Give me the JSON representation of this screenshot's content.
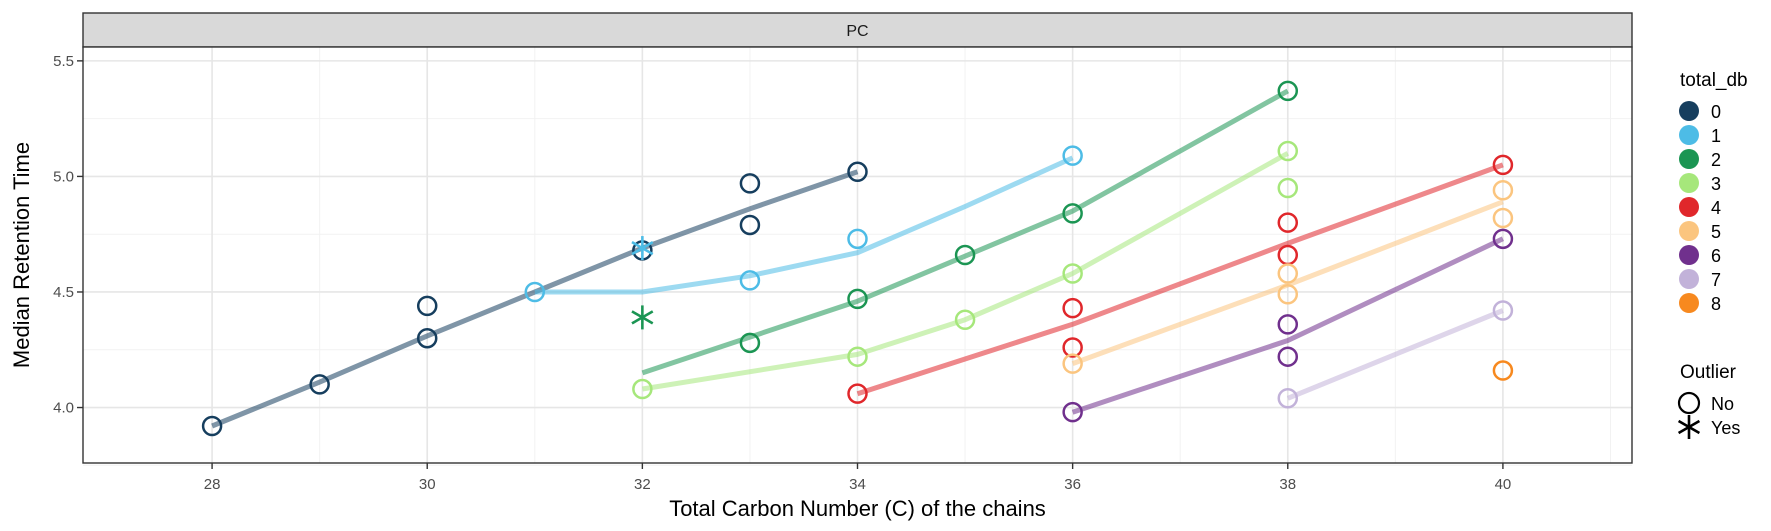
{
  "chart_data": {
    "type": "scatter",
    "facet": "PC",
    "xlabel": "Total Carbon Number (C) of the chains",
    "ylabel": "Median Retention Time",
    "xlim": [
      26.8,
      41.2
    ],
    "ylim": [
      3.76,
      5.56
    ],
    "x_ticks": [
      28,
      30,
      32,
      34,
      36,
      38,
      40
    ],
    "y_ticks": [
      4.0,
      4.5,
      5.0,
      5.5
    ],
    "y_tick_labels": [
      "4.0",
      "4.5",
      "5.0",
      "5.5"
    ],
    "grid": true,
    "legend_position": "right",
    "color_legend": {
      "title": "total_db",
      "entries": [
        {
          "label": "0",
          "color": "#163E5E"
        },
        {
          "label": "1",
          "color": "#4DBCE6"
        },
        {
          "label": "2",
          "color": "#1B9553"
        },
        {
          "label": "3",
          "color": "#A6E77B"
        },
        {
          "label": "4",
          "color": "#E0272B"
        },
        {
          "label": "5",
          "color": "#FBC57F"
        },
        {
          "label": "6",
          "color": "#70308D"
        },
        {
          "label": "7",
          "color": "#C2B2D9"
        },
        {
          "label": "8",
          "color": "#F7891F"
        }
      ]
    },
    "shape_legend": {
      "title": "Outlier",
      "entries": [
        {
          "label": "No",
          "shape": "open-circle"
        },
        {
          "label": "Yes",
          "shape": "asterisk"
        }
      ]
    },
    "series": [
      {
        "name": "0",
        "points": [
          {
            "x": 28,
            "y": 3.92,
            "outlier": false
          },
          {
            "x": 29,
            "y": 4.1,
            "outlier": false
          },
          {
            "x": 30,
            "y": 4.3,
            "outlier": false
          },
          {
            "x": 30,
            "y": 4.44,
            "outlier": false
          },
          {
            "x": 32,
            "y": 4.68,
            "outlier": false
          },
          {
            "x": 33,
            "y": 4.79,
            "outlier": false
          },
          {
            "x": 33,
            "y": 4.97,
            "outlier": false
          },
          {
            "x": 34,
            "y": 5.02,
            "outlier": false
          }
        ],
        "fit": [
          [
            28,
            3.92
          ],
          [
            29,
            4.11
          ],
          [
            30,
            4.31
          ],
          [
            31,
            4.5
          ],
          [
            32,
            4.69
          ],
          [
            33,
            4.86
          ],
          [
            34,
            5.02
          ]
        ]
      },
      {
        "name": "1",
        "points": [
          {
            "x": 31,
            "y": 4.5,
            "outlier": false
          },
          {
            "x": 32,
            "y": 4.69,
            "outlier": true
          },
          {
            "x": 33,
            "y": 4.55,
            "outlier": false
          },
          {
            "x": 34,
            "y": 4.73,
            "outlier": false
          },
          {
            "x": 36,
            "y": 5.09,
            "outlier": false
          }
        ],
        "fit": [
          [
            31,
            4.5
          ],
          [
            32,
            4.5
          ],
          [
            33,
            4.57
          ],
          [
            34,
            4.67
          ],
          [
            35,
            4.87
          ],
          [
            36,
            5.08
          ]
        ]
      },
      {
        "name": "2",
        "points": [
          {
            "x": 32,
            "y": 4.39,
            "outlier": true
          },
          {
            "x": 33,
            "y": 4.28,
            "outlier": false
          },
          {
            "x": 34,
            "y": 4.47,
            "outlier": false
          },
          {
            "x": 35,
            "y": 4.66,
            "outlier": false
          },
          {
            "x": 36,
            "y": 4.84,
            "outlier": false
          },
          {
            "x": 38,
            "y": 5.37,
            "outlier": false
          }
        ],
        "fit": [
          [
            32,
            4.15
          ],
          [
            34,
            4.46
          ],
          [
            36,
            4.85
          ],
          [
            38,
            5.37
          ]
        ]
      },
      {
        "name": "3",
        "points": [
          {
            "x": 32,
            "y": 4.08,
            "outlier": false
          },
          {
            "x": 34,
            "y": 4.22,
            "outlier": false
          },
          {
            "x": 35,
            "y": 4.38,
            "outlier": false
          },
          {
            "x": 36,
            "y": 4.58,
            "outlier": false
          },
          {
            "x": 38,
            "y": 4.95,
            "outlier": false
          },
          {
            "x": 38,
            "y": 5.11,
            "outlier": false
          }
        ],
        "fit": [
          [
            32,
            4.08
          ],
          [
            34,
            4.23
          ],
          [
            35,
            4.38
          ],
          [
            36,
            4.58
          ],
          [
            38,
            5.1
          ]
        ]
      },
      {
        "name": "4",
        "points": [
          {
            "x": 34,
            "y": 4.06,
            "outlier": false
          },
          {
            "x": 36,
            "y": 4.26,
            "outlier": false
          },
          {
            "x": 36,
            "y": 4.43,
            "outlier": false
          },
          {
            "x": 38,
            "y": 4.66,
            "outlier": false
          },
          {
            "x": 38,
            "y": 4.8,
            "outlier": false
          },
          {
            "x": 40,
            "y": 5.05,
            "outlier": false
          }
        ],
        "fit": [
          [
            34,
            4.06
          ],
          [
            36,
            4.36
          ],
          [
            38,
            4.71
          ],
          [
            40,
            5.05
          ]
        ]
      },
      {
        "name": "5",
        "points": [
          {
            "x": 36,
            "y": 4.19,
            "outlier": false
          },
          {
            "x": 38,
            "y": 4.49,
            "outlier": false
          },
          {
            "x": 38,
            "y": 4.58,
            "outlier": false
          },
          {
            "x": 40,
            "y": 4.82,
            "outlier": false
          },
          {
            "x": 40,
            "y": 4.94,
            "outlier": false
          }
        ],
        "fit": [
          [
            36,
            4.19
          ],
          [
            38,
            4.53
          ],
          [
            40,
            4.89
          ]
        ]
      },
      {
        "name": "6",
        "points": [
          {
            "x": 36,
            "y": 3.98,
            "outlier": false
          },
          {
            "x": 38,
            "y": 4.22,
            "outlier": false
          },
          {
            "x": 38,
            "y": 4.36,
            "outlier": false
          },
          {
            "x": 40,
            "y": 4.73,
            "outlier": false
          }
        ],
        "fit": [
          [
            36,
            3.98
          ],
          [
            38,
            4.29
          ],
          [
            40,
            4.73
          ]
        ]
      },
      {
        "name": "7",
        "points": [
          {
            "x": 38,
            "y": 4.04,
            "outlier": false
          },
          {
            "x": 40,
            "y": 4.42,
            "outlier": false
          }
        ],
        "fit": [
          [
            38,
            4.04
          ],
          [
            40,
            4.42
          ]
        ]
      },
      {
        "name": "8",
        "points": [
          {
            "x": 40,
            "y": 4.16,
            "outlier": false
          }
        ],
        "fit": []
      }
    ]
  }
}
